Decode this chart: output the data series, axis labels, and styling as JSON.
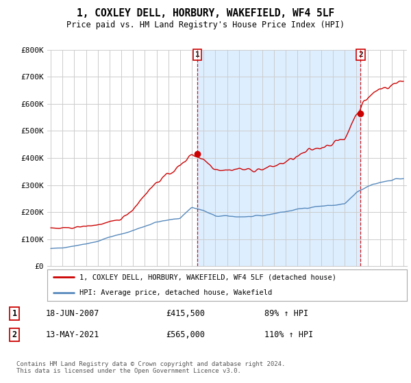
{
  "title": "1, COXLEY DELL, HORBURY, WAKEFIELD, WF4 5LF",
  "subtitle": "Price paid vs. HM Land Registry's House Price Index (HPI)",
  "ylim": [
    0,
    800000
  ],
  "yticks": [
    0,
    100000,
    200000,
    300000,
    400000,
    500000,
    600000,
    700000,
    800000
  ],
  "ytick_labels": [
    "£0",
    "£100K",
    "£200K",
    "£300K",
    "£400K",
    "£500K",
    "£600K",
    "£700K",
    "£800K"
  ],
  "sale1_date": "18-JUN-2007",
  "sale1_price": 415500,
  "sale1_x": 2007.46,
  "sale1_hpi": "89%",
  "sale2_date": "13-MAY-2021",
  "sale2_price": 565000,
  "sale2_x": 2021.36,
  "sale2_hpi": "110%",
  "legend_label1": "1, COXLEY DELL, HORBURY, WAKEFIELD, WF4 5LF (detached house)",
  "legend_label2": "HPI: Average price, detached house, Wakefield",
  "footer": "Contains HM Land Registry data © Crown copyright and database right 2024.\nThis data is licensed under the Open Government Licence v3.0.",
  "red_color": "#cc0000",
  "blue_color": "#5588bb",
  "vline_color": "#cc0000",
  "bg_color": "#ffffff",
  "grid_color": "#cccccc",
  "shade_color": "#ddeeff",
  "xlim_left": 1994.7,
  "xlim_right": 2025.3
}
